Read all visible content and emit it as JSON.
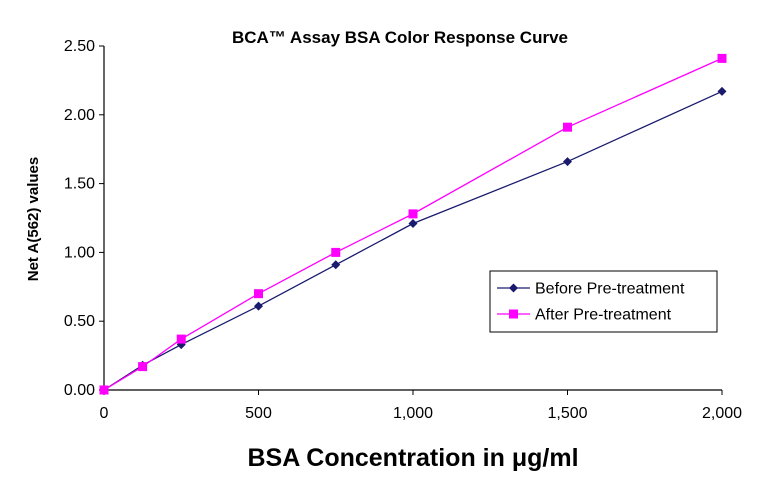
{
  "chart_data": {
    "type": "line",
    "title": "BCA™ Assay BSA Color Response Curve",
    "xlabel": "BSA Concentration in μg/ml",
    "ylabel": "Net A(562) values",
    "xlim": [
      0,
      2000
    ],
    "ylim": [
      0,
      2.5
    ],
    "xticks": [
      0,
      500,
      1000,
      1500,
      2000
    ],
    "xtick_labels": [
      "0",
      "500",
      "1,000",
      "1,500",
      "2,000"
    ],
    "yticks": [
      0,
      0.5,
      1,
      1.5,
      2,
      2.5
    ],
    "ytick_labels": [
      "0.00",
      "0.50",
      "1.00",
      "1.50",
      "2.00",
      "2.50"
    ],
    "grid": false,
    "legend_position": "center-right",
    "x": [
      0,
      125,
      250,
      500,
      750,
      1000,
      1500,
      2000
    ],
    "series": [
      {
        "name": "Before Pre-treatment",
        "color": "#1a1a6e",
        "marker": "diamond",
        "values": [
          0.0,
          0.18,
          0.33,
          0.61,
          0.91,
          1.21,
          1.66,
          2.17
        ]
      },
      {
        "name": "After Pre-treatment",
        "color": "#ff00ff",
        "marker": "square",
        "values": [
          0.0,
          0.17,
          0.37,
          0.7,
          1.0,
          1.28,
          1.91,
          2.41
        ]
      }
    ]
  }
}
